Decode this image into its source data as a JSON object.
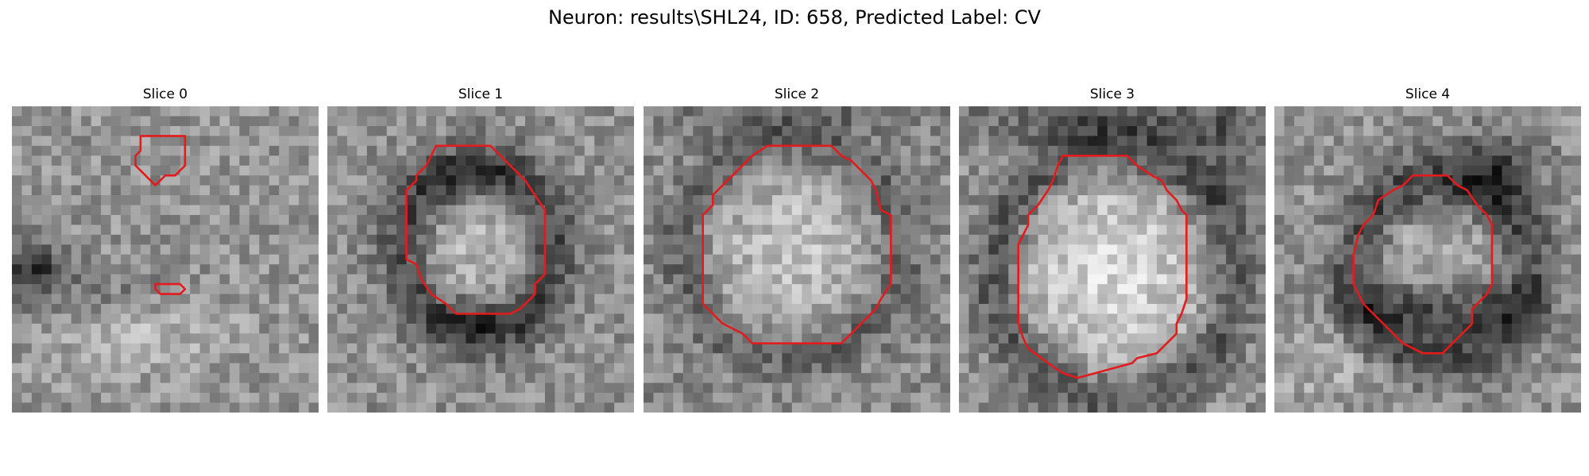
{
  "figure": {
    "title": "Neuron: results\\SHL24, ID: 658, Predicted Label: CV"
  },
  "panels": [
    {
      "title": "Slice 0"
    },
    {
      "title": "Slice 1"
    },
    {
      "title": "Slice 2"
    },
    {
      "title": "Slice 3"
    },
    {
      "title": "Slice 4"
    }
  ],
  "colors": {
    "contour": "#e41a1c",
    "background": "#ffffff"
  }
}
